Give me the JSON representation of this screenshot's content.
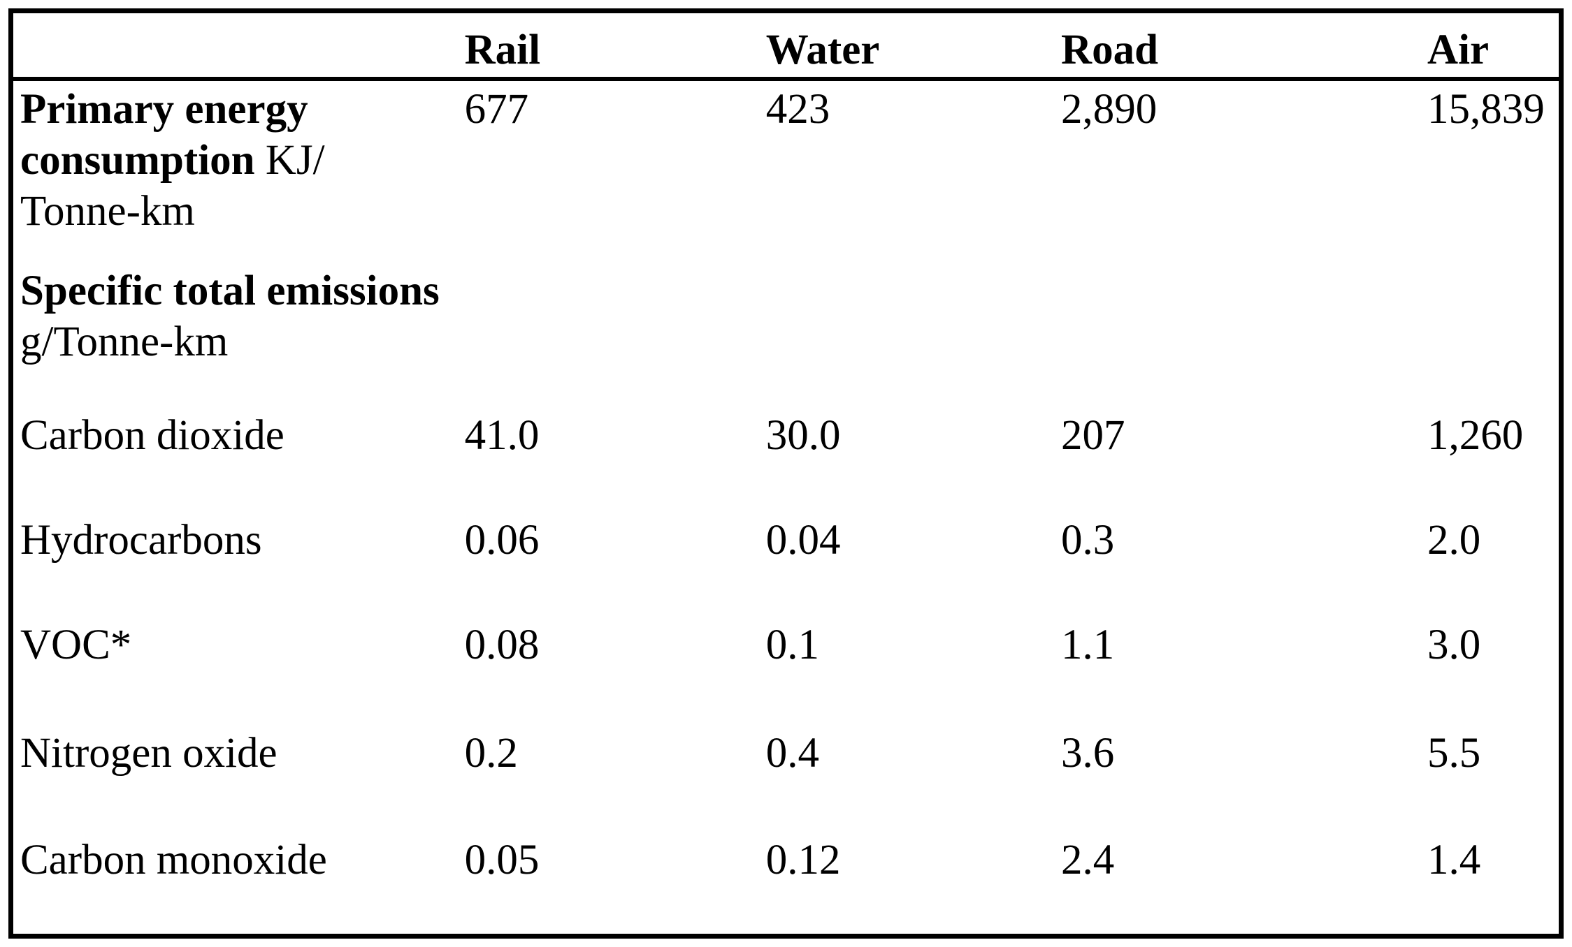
{
  "table": {
    "header": {
      "corner": "",
      "columns": [
        "Rail",
        "Water",
        "Road",
        "Air"
      ]
    },
    "rows": [
      {
        "id": "primary-energy",
        "label_full": "Primary energy consumption KJ/Tonne-km",
        "label_lines": [
          {
            "bold": "Primary energy",
            "regular": ""
          },
          {
            "bold": "consumption",
            "regular": "KJ/"
          },
          {
            "bold": "",
            "regular": "Tonne-km"
          }
        ],
        "values": [
          "677",
          "423",
          "2,890",
          "15,839"
        ]
      },
      {
        "id": "specific-total-emissions",
        "label_full": "Specific total emissions g/Tonne-km",
        "label_lines": [
          {
            "bold": "Specific total emissions",
            "regular": ""
          },
          {
            "bold": "",
            "regular": "g/Tonne-km"
          }
        ],
        "values": [
          "",
          "",
          "",
          ""
        ]
      },
      {
        "id": "carbon-dioxide",
        "label": "Carbon dioxide",
        "values": [
          "41.0",
          "30.0",
          "207",
          "1,260"
        ]
      },
      {
        "id": "hydrocarbons",
        "label": "Hydrocarbons",
        "values": [
          "0.06",
          "0.04",
          "0.3",
          "2.0"
        ]
      },
      {
        "id": "voc",
        "label": "VOC*",
        "values": [
          "0.08",
          "0.1",
          "1.1",
          "3.0"
        ]
      },
      {
        "id": "nitrogen-oxide",
        "label": "Nitrogen oxide",
        "values": [
          "0.2",
          "0.4",
          "3.6",
          "5.5"
        ]
      },
      {
        "id": "carbon-monoxide",
        "label": "Carbon monoxide",
        "values": [
          "0.05",
          "0.12",
          "2.4",
          "1.4"
        ]
      }
    ]
  },
  "chart_data": {
    "type": "table",
    "columns": [
      "Rail",
      "Water",
      "Road",
      "Air"
    ],
    "rows": [
      {
        "label": "Primary energy consumption",
        "unit": "KJ/Tonne-km",
        "values": [
          677,
          423,
          2890,
          15839
        ]
      },
      {
        "label": "Specific total emissions",
        "unit": "g/Tonne-km",
        "section_header": true,
        "values": []
      },
      {
        "label": "Carbon dioxide",
        "unit": "g/Tonne-km",
        "values": [
          41.0,
          30.0,
          207,
          1260
        ]
      },
      {
        "label": "Hydrocarbons",
        "unit": "g/Tonne-km",
        "values": [
          0.06,
          0.04,
          0.3,
          2.0
        ]
      },
      {
        "label": "VOC*",
        "unit": "g/Tonne-km",
        "values": [
          0.08,
          0.1,
          1.1,
          3.0
        ]
      },
      {
        "label": "Nitrogen oxide",
        "unit": "g/Tonne-km",
        "values": [
          0.2,
          0.4,
          3.6,
          5.5
        ]
      },
      {
        "label": "Carbon monoxide",
        "unit": "g/Tonne-km",
        "values": [
          0.05,
          0.12,
          2.4,
          1.4
        ]
      }
    ],
    "colors": {
      "text": "#000000",
      "background": "#ffffff",
      "border": "#000000"
    }
  }
}
